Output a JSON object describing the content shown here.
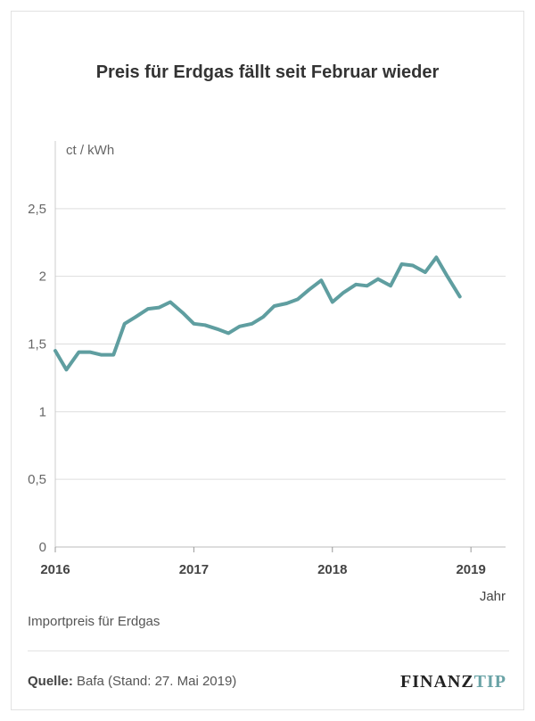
{
  "chart_data": {
    "type": "line",
    "title": "Preis für Erdgas fällt seit Februar wieder",
    "ylabel": "ct / kWh",
    "xlabel": "Jahr",
    "caption": "Importpreis für Erdgas",
    "ylim": [
      0,
      3
    ],
    "xlim": [
      2016.0,
      2019.25
    ],
    "yticks": [
      {
        "value": 0,
        "label": "0"
      },
      {
        "value": 0.5,
        "label": "0,5"
      },
      {
        "value": 1,
        "label": "1"
      },
      {
        "value": 1.5,
        "label": "1,5"
      },
      {
        "value": 2,
        "label": "2"
      },
      {
        "value": 2.5,
        "label": "2,5"
      }
    ],
    "xticks": [
      {
        "value": 2016,
        "label": "2016"
      },
      {
        "value": 2017,
        "label": "2017"
      },
      {
        "value": 2018,
        "label": "2018"
      },
      {
        "value": 2019,
        "label": "2019"
      }
    ],
    "grid": true,
    "line_color": "#5f9ea0",
    "series": [
      {
        "name": "Importpreis für Erdgas",
        "points": [
          [
            2016.0,
            1.45
          ],
          [
            2016.08,
            1.31
          ],
          [
            2016.17,
            1.44
          ],
          [
            2016.25,
            1.44
          ],
          [
            2016.33,
            1.42
          ],
          [
            2016.42,
            1.42
          ],
          [
            2016.5,
            1.65
          ],
          [
            2016.58,
            1.7
          ],
          [
            2016.67,
            1.76
          ],
          [
            2016.75,
            1.77
          ],
          [
            2016.83,
            1.81
          ],
          [
            2016.92,
            1.73
          ],
          [
            2017.0,
            1.65
          ],
          [
            2017.08,
            1.64
          ],
          [
            2017.17,
            1.61
          ],
          [
            2017.25,
            1.58
          ],
          [
            2017.33,
            1.63
          ],
          [
            2017.42,
            1.65
          ],
          [
            2017.5,
            1.7
          ],
          [
            2017.58,
            1.78
          ],
          [
            2017.67,
            1.8
          ],
          [
            2017.75,
            1.83
          ],
          [
            2017.83,
            1.9
          ],
          [
            2017.92,
            1.97
          ],
          [
            2018.0,
            1.81
          ],
          [
            2018.08,
            1.88
          ],
          [
            2018.17,
            1.94
          ],
          [
            2018.25,
            1.93
          ],
          [
            2018.33,
            1.98
          ],
          [
            2018.42,
            1.93
          ],
          [
            2018.5,
            2.09
          ],
          [
            2018.58,
            2.08
          ],
          [
            2018.67,
            2.03
          ],
          [
            2018.75,
            2.14
          ],
          [
            2018.83,
            2.0
          ],
          [
            2018.92,
            1.85
          ]
        ]
      }
    ]
  },
  "source": {
    "label": "Quelle:",
    "text": "Bafa (Stand: 27. Mai 2019)"
  },
  "logo": {
    "part1": "FINANZ",
    "part2": "TIP"
  }
}
